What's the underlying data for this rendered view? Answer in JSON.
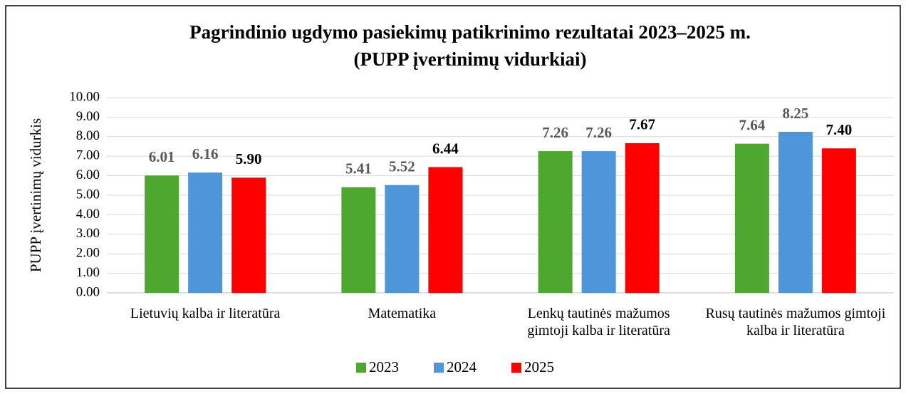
{
  "chart_data": {
    "type": "bar",
    "title": "Pagrindinio ugdymo pasiekimų patikrinimo rezultatai 2023–2025 m.",
    "subtitle": "(PUPP įvertinimų vidurkiai)",
    "y_label": "PUPP įvertinimų vidurkis",
    "categories": [
      "Lietuvių kalba ir literatūra",
      "Matematika",
      "Lenkų tautinės mažumos gimtoji kalba ir literatūra",
      "Rusų tautinės mažumos gimtoji kalba ir literatūra"
    ],
    "series": [
      {
        "name": "2023",
        "color": "#4ea72e",
        "values": [
          6.01,
          5.41,
          7.26,
          7.64
        ],
        "value_labels": [
          "6.01",
          "5.41",
          "7.26",
          "7.64"
        ]
      },
      {
        "name": "2024",
        "color": "#4e95d9",
        "values": [
          6.16,
          5.52,
          7.26,
          8.25
        ],
        "value_labels": [
          "6.16",
          "5.52",
          "7.26",
          "8.25"
        ]
      },
      {
        "name": "2025",
        "color": "#ff0000",
        "values": [
          5.9,
          6.44,
          7.67,
          7.4
        ],
        "value_labels": [
          "5.90",
          "6.44",
          "7.67",
          "7.40"
        ]
      }
    ],
    "ylim": [
      0,
      10
    ],
    "yticks": [
      {
        "value": 0,
        "label": "0.00"
      },
      {
        "value": 1,
        "label": "1.00"
      },
      {
        "value": 2,
        "label": "2.00"
      },
      {
        "value": 3,
        "label": "3.00"
      },
      {
        "value": 4,
        "label": "4.00"
      },
      {
        "value": 5,
        "label": "5.00"
      },
      {
        "value": 6,
        "label": "6.00"
      },
      {
        "value": 7,
        "label": "7.00"
      },
      {
        "value": 8,
        "label": "8.00"
      },
      {
        "value": 9,
        "label": "9.00"
      },
      {
        "value": 10,
        "label": "10.00"
      }
    ],
    "grid": true,
    "legend": "bottom"
  }
}
